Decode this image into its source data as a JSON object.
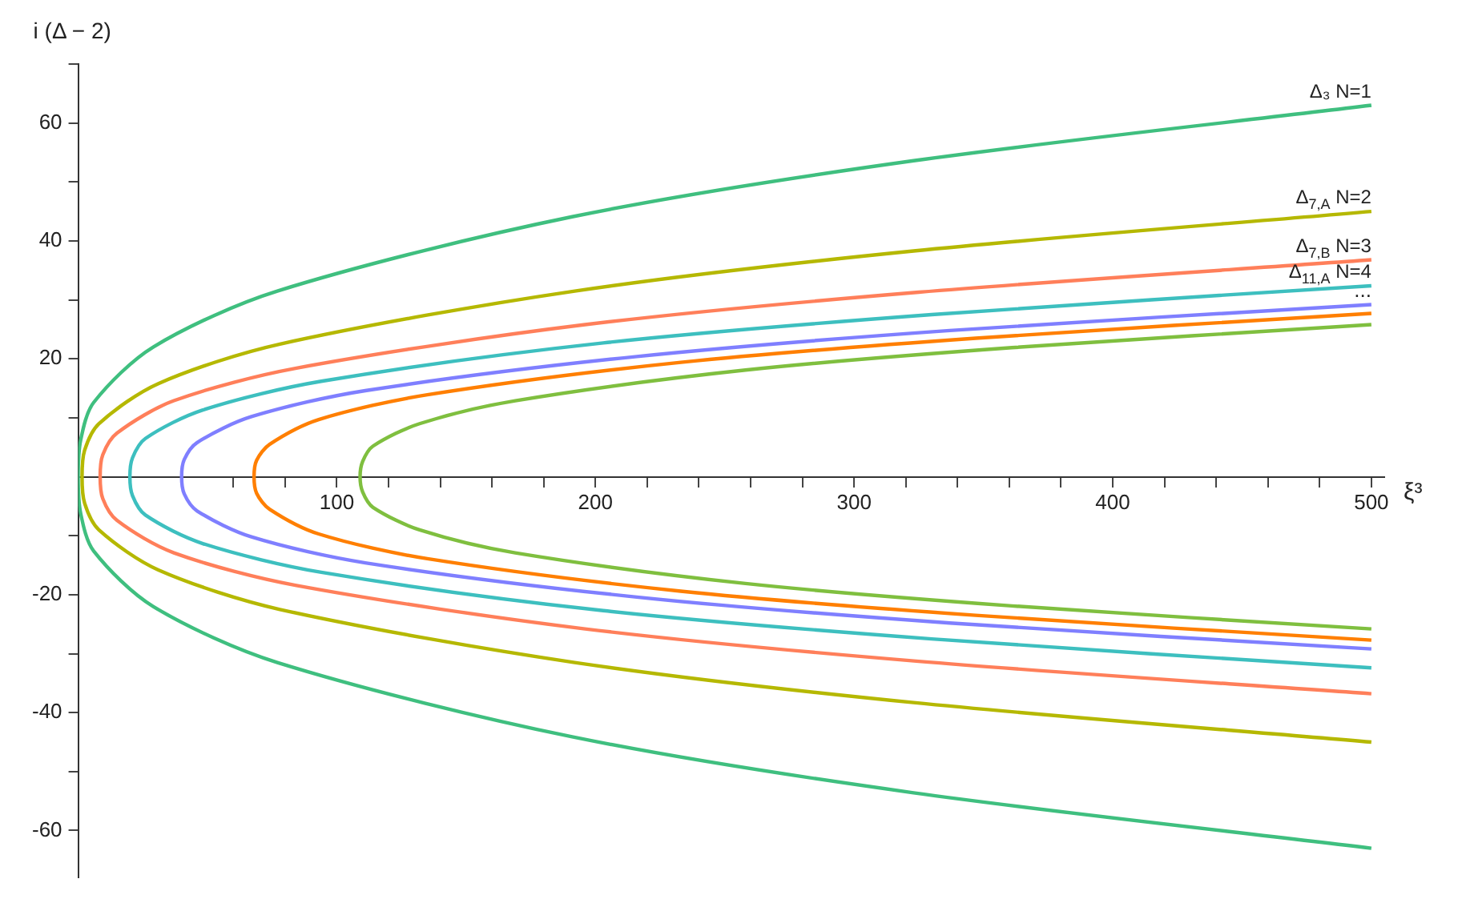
{
  "chart_data": {
    "type": "line",
    "xlabel": "ξ³",
    "ylabel": "i (Δ − 2)",
    "xlim": [
      0,
      505
    ],
    "ylim": [
      -68,
      70
    ],
    "xticks": [
      {
        "value": 20,
        "label": null
      },
      {
        "value": 40,
        "label": null
      },
      {
        "value": 60,
        "label": null
      },
      {
        "value": 80,
        "label": null
      },
      100,
      {
        "value": 120,
        "label": null
      },
      {
        "value": 140,
        "label": null
      },
      {
        "value": 160,
        "label": null
      },
      {
        "value": 180,
        "label": null
      },
      200,
      {
        "value": 220,
        "label": null
      },
      {
        "value": 240,
        "label": null
      },
      {
        "value": 260,
        "label": null
      },
      {
        "value": 280,
        "label": null
      },
      300,
      {
        "value": 320,
        "label": null
      },
      {
        "value": 340,
        "label": null
      },
      {
        "value": 360,
        "label": null
      },
      {
        "value": 380,
        "label": null
      },
      400,
      {
        "value": 420,
        "label": null
      },
      {
        "value": 440,
        "label": null
      },
      {
        "value": 460,
        "label": null
      },
      {
        "value": 480,
        "label": null
      },
      500
    ],
    "yticks": [
      -60,
      {
        "value": -50,
        "label": null
      },
      -40,
      {
        "value": -30,
        "label": null
      },
      -20,
      {
        "value": -10,
        "label": null
      },
      {
        "value": 10,
        "label": null
      },
      20,
      {
        "value": 30,
        "label": null
      },
      40,
      {
        "value": 50,
        "label": null
      },
      60,
      {
        "value": 70,
        "label": null
      }
    ],
    "grid": false,
    "legend": false,
    "marker": "none",
    "line_style": "solid",
    "series": [
      {
        "name": "Δ₃ N=1",
        "color": "#3fbf7f",
        "x": [
          500,
          323,
          191,
          77,
          29,
          6,
          1,
          0,
          1,
          6,
          29,
          77,
          191,
          323,
          500
        ],
        "values": [
          -63,
          -53.6,
          -44.1,
          -31.5,
          -22,
          -12.6,
          -6.3,
          0,
          6.3,
          12.6,
          22,
          31.5,
          44.1,
          53.6,
          63
        ]
      },
      {
        "name": "Δ$_{7,A}$ N=2",
        "color": "#b5b800",
        "x": [
          500,
          323,
          192,
          78,
          31,
          8,
          2.5,
          1.5,
          2.5,
          8,
          31,
          78,
          192,
          323,
          500
        ],
        "values": [
          -45,
          -38.3,
          -31.5,
          -22.5,
          -15.8,
          -9,
          -4.5,
          0,
          4.5,
          9,
          15.8,
          22.5,
          31.5,
          38.3,
          45
        ]
      },
      {
        "name": "Δ$_{7,B}$ N=3",
        "color": "#ff7f5a",
        "x": [
          500,
          325,
          196,
          84,
          37,
          15,
          9.5,
          8.5,
          9.5,
          15,
          37,
          84,
          196,
          325,
          500
        ],
        "values": [
          -36.8,
          -31.3,
          -25.8,
          -18.4,
          -12.9,
          -7.4,
          -3.7,
          0,
          3.7,
          7.4,
          12.9,
          18.4,
          25.8,
          31.3,
          36.8
        ]
      },
      {
        "name": "Δ$_{11,A}$ N=4",
        "color": "#3dbfbf",
        "x": [
          500,
          330,
          203,
          94,
          48,
          26,
          21,
          20,
          21,
          26,
          48,
          94,
          203,
          330,
          500
        ],
        "values": [
          -32.4,
          -27.5,
          -22.7,
          -16.2,
          -11.3,
          -6.5,
          -3.2,
          0,
          3.2,
          6.5,
          11.3,
          16.2,
          22.7,
          27.5,
          32.4
        ]
      },
      {
        "color": "#7f7fff",
        "x": [
          500,
          337,
          216,
          111,
          67,
          46,
          41,
          40,
          41,
          46,
          67,
          111,
          216,
          337,
          500
        ],
        "values": [
          -29.2,
          -24.8,
          -20.4,
          -14.6,
          -10.2,
          -5.8,
          -2.9,
          0,
          2.9,
          5.8,
          10.2,
          14.6,
          20.4,
          24.8,
          29.2
        ]
      },
      {
        "color": "#ff7f00",
        "x": [
          500,
          347,
          233,
          135,
          93,
          74,
          69,
          68,
          69,
          74,
          93,
          135,
          233,
          347,
          500
        ],
        "values": [
          -27.7,
          -23.5,
          -19.4,
          -13.9,
          -9.7,
          -5.5,
          -2.8,
          0,
          2.8,
          5.5,
          9.7,
          13.9,
          19.4,
          23.5,
          27.7
        ]
      },
      {
        "color": "#7fbf3f",
        "x": [
          500,
          361,
          258,
          169,
          132,
          114,
          110,
          109,
          110,
          114,
          132,
          169,
          258,
          361,
          500
        ],
        "values": [
          -25.8,
          -21.9,
          -18.1,
          -12.9,
          -9,
          -5.2,
          -2.6,
          0,
          2.6,
          5.2,
          9,
          12.9,
          18.1,
          21.9,
          25.8
        ]
      }
    ],
    "annotations": [
      {
        "text": "...",
        "x": 500,
        "y": 29.2
      }
    ]
  }
}
